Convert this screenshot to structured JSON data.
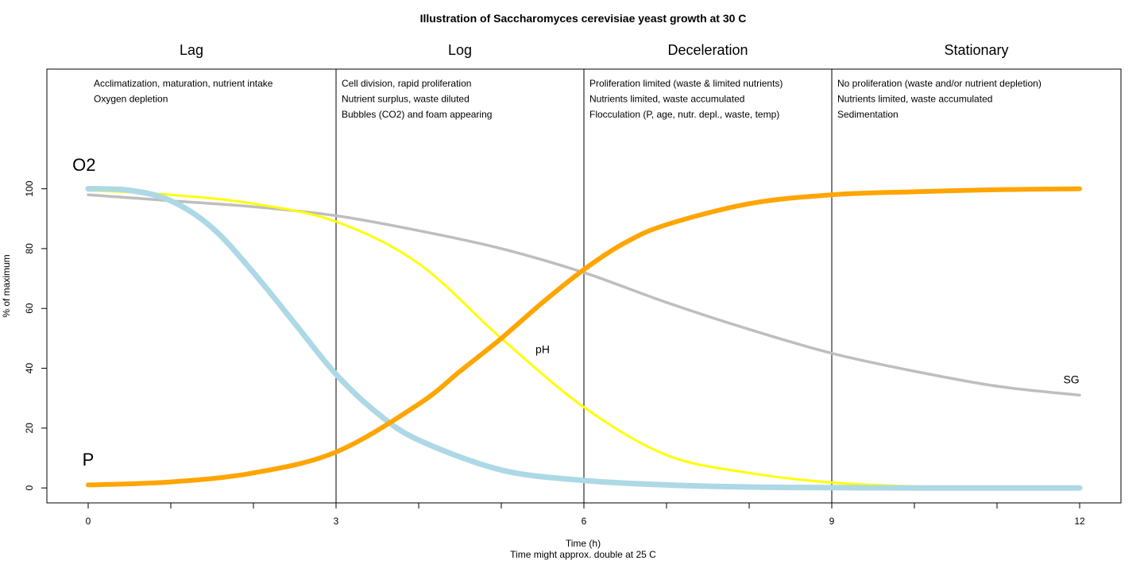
{
  "chart_data": {
    "type": "line",
    "title": "Illustration of Saccharomyces cerevisiae yeast growth at 30 C",
    "xlabel": "Time (h)",
    "xlabel_note": "Time might approx. double at 25 C",
    "ylabel": "% of maximum",
    "xlim": [
      -0.5,
      12.5
    ],
    "ylim": [
      -5,
      140
    ],
    "x_ticks": [
      0,
      3,
      6,
      9,
      12
    ],
    "x_minor_ticks": [
      1,
      2,
      4,
      5,
      7,
      8,
      10,
      11
    ],
    "y_ticks": [
      0,
      20,
      40,
      60,
      80,
      100
    ],
    "grid": false,
    "phase_boundaries": [
      3,
      6,
      9
    ],
    "phases": [
      {
        "name": "Lag",
        "x_start": -0.5,
        "x_end": 3,
        "notes": [
          "Acclimatization, maturation, nutrient intake",
          "Oxygen depletion"
        ]
      },
      {
        "name": "Log",
        "x_start": 3,
        "x_end": 6,
        "notes": [
          "Cell division, rapid proliferation",
          "Nutrient surplus, waste diluted",
          "Bubbles (CO2) and foam appearing"
        ]
      },
      {
        "name": "Deceleration",
        "x_start": 6,
        "x_end": 9,
        "notes": [
          "Proliferation limited (waste & limited nutrients)",
          "Nutrients limited, waste accumulated",
          "Flocculation (P, age, nutr. depl., waste, temp)"
        ]
      },
      {
        "name": "Stationary",
        "x_start": 9,
        "x_end": 12.5,
        "notes": [
          "No proliferation (waste and/or nutrient depletion)",
          "Nutrients limited, waste accumulated",
          "Sedimentation"
        ]
      }
    ],
    "series": [
      {
        "name": "SG",
        "color": "#bebebe",
        "x": [
          0,
          1,
          2,
          3,
          4,
          5,
          6,
          7,
          8,
          9,
          10,
          11,
          12
        ],
        "y": [
          98,
          96,
          94,
          91,
          86,
          80,
          72,
          62,
          53,
          45,
          39,
          34,
          31
        ]
      },
      {
        "name": "pH",
        "color": "#ffff00",
        "x": [
          0,
          1,
          2,
          3,
          4,
          5,
          6,
          7,
          8,
          9,
          10,
          11,
          12
        ],
        "y": [
          99.5,
          98,
          95,
          89,
          75,
          50,
          27,
          11,
          5,
          1.8,
          0.5,
          0.2,
          0
        ]
      },
      {
        "name": "O2",
        "color": "#add8e6",
        "x": [
          0,
          0.5,
          1,
          1.5,
          2,
          2.5,
          3,
          3.5,
          4,
          5,
          6,
          7,
          8,
          9,
          10,
          11,
          12
        ],
        "y": [
          100,
          99.5,
          96,
          87,
          72,
          55,
          38,
          25,
          16,
          6,
          2.5,
          1,
          0.3,
          0.1,
          0,
          0,
          0
        ]
      },
      {
        "name": "P",
        "color": "#ffa500",
        "x": [
          0,
          1,
          2,
          3,
          4,
          4.5,
          5,
          5.5,
          6,
          6.5,
          7,
          8,
          9,
          10,
          11,
          12
        ],
        "y": [
          1,
          2,
          5,
          12,
          28,
          39,
          50,
          62,
          73,
          82,
          88,
          95,
          98,
          99,
          99.7,
          100
        ]
      }
    ],
    "curve_labels": [
      {
        "text": "O2",
        "x": -0.05,
        "y": 106
      },
      {
        "text": "P",
        "x": 0,
        "y": 7.5
      },
      {
        "text": "pH",
        "x": 5.5,
        "y": 45
      },
      {
        "text": "SG",
        "x": 11.9,
        "y": 35
      }
    ]
  }
}
